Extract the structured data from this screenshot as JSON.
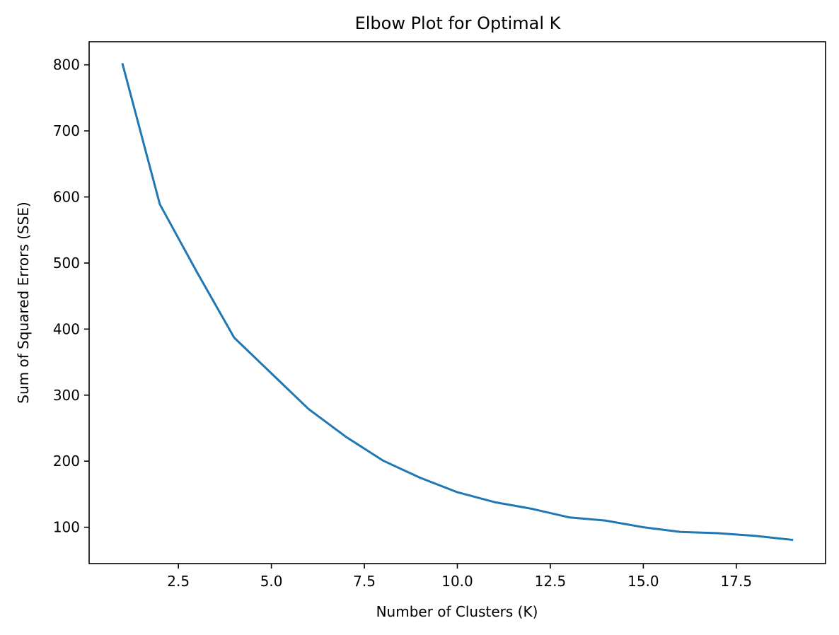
{
  "chart_data": {
    "type": "line",
    "title": "Elbow Plot for Optimal K",
    "xlabel": "Number of Clusters (K)",
    "ylabel": "Sum of Squared Errors (SSE)",
    "xlim": [
      0.1,
      19.9
    ],
    "ylim": [
      45,
      835
    ],
    "xticks": [
      2.5,
      5.0,
      7.5,
      10.0,
      12.5,
      15.0,
      17.5
    ],
    "xtick_labels": [
      "2.5",
      "5.0",
      "7.5",
      "10.0",
      "12.5",
      "15.0",
      "17.5"
    ],
    "yticks": [
      100,
      200,
      300,
      400,
      500,
      600,
      700,
      800
    ],
    "ytick_labels": [
      "100",
      "200",
      "300",
      "400",
      "500",
      "600",
      "700",
      "800"
    ],
    "grid": false,
    "line_color": "#1f77b4",
    "series": [
      {
        "x": [
          1,
          2,
          3,
          4,
          5,
          6,
          7,
          8,
          9,
          10,
          11,
          12,
          13,
          14,
          15,
          16,
          17,
          18,
          19
        ],
        "y": [
          801,
          589,
          486,
          387,
          333,
          279,
          237,
          201,
          175,
          153,
          138,
          128,
          115,
          110,
          100,
          93,
          91,
          87,
          81
        ]
      }
    ]
  }
}
